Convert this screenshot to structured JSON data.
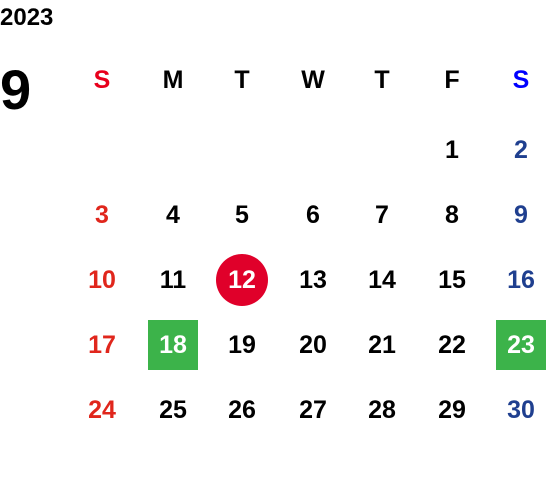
{
  "year": "2023",
  "month": "9",
  "weekdays": [
    "S",
    "M",
    "T",
    "W",
    "T",
    "F",
    "S"
  ],
  "weekday_header_colors": [
    "#e8001c",
    "#000000",
    "#000000",
    "#000000",
    "#000000",
    "#000000",
    "#0000ff"
  ],
  "day_colors": [
    "#e0261c",
    "#000000",
    "#000000",
    "#000000",
    "#000000",
    "#000000",
    "#1f3f8f"
  ],
  "highlight_text_color": "#ffffff",
  "weeks": [
    [
      null,
      null,
      null,
      null,
      null,
      1,
      2
    ],
    [
      3,
      4,
      5,
      6,
      7,
      8,
      9
    ],
    [
      10,
      11,
      {
        "day": 12,
        "shape": "circle",
        "color": "#e0002a"
      },
      13,
      14,
      15,
      16
    ],
    [
      17,
      {
        "day": 18,
        "shape": "square",
        "color": "#3cb34a"
      },
      19,
      20,
      21,
      22,
      {
        "day": 23,
        "shape": "square",
        "color": "#3cb34a"
      }
    ],
    [
      24,
      25,
      26,
      27,
      28,
      29,
      30
    ]
  ]
}
